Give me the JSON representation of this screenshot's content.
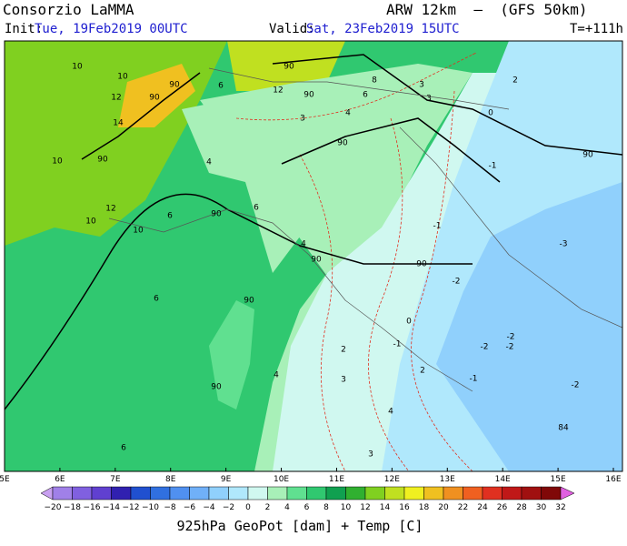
{
  "header": {
    "title": "Consorzio LaMMA",
    "init_label": "Init:",
    "init_time": "Tue, 19Feb2019 00UTC",
    "valid_label": "Valid:",
    "valid_time": "Sat, 23Feb2019 15UTC",
    "model": "ARW 12km  –  (GFS 50km)",
    "lead_time": "T=+111h"
  },
  "map": {
    "longitude_labels": [
      "5E",
      "6E",
      "7E",
      "8E",
      "9E",
      "10E",
      "11E",
      "12E",
      "13E",
      "14E",
      "15E",
      "16E"
    ],
    "contour_labels": [
      "10",
      "10",
      "12",
      "14",
      "90",
      "90",
      "6",
      "90",
      "12",
      "90",
      "8",
      "6",
      "4",
      "3",
      "3",
      "3",
      "2",
      "0",
      "90",
      "90",
      "10",
      "90",
      "4",
      "12",
      "10",
      "10",
      "6",
      "90",
      "6",
      "4",
      "90",
      "90",
      "-1",
      "-1",
      "-3",
      "-2",
      "6",
      "90",
      "0",
      "-1",
      "2",
      "-2",
      "-2",
      "-2",
      "3",
      "4",
      "2",
      "-1",
      "90",
      "-2",
      "84",
      "4",
      "3",
      "6"
    ]
  },
  "colorbar": {
    "labels": [
      "−20",
      "−18",
      "−16",
      "−14",
      "−12",
      "−10",
      "−8",
      "−6",
      "−4",
      "−2",
      "0",
      "2",
      "4",
      "6",
      "8",
      "10",
      "12",
      "14",
      "16",
      "18",
      "20",
      "22",
      "24",
      "26",
      "28",
      "30",
      "32"
    ],
    "colors": [
      "#c8a0f0",
      "#a080e8",
      "#8060e0",
      "#6040d0",
      "#3020b0",
      "#2050d0",
      "#3070e0",
      "#5090f0",
      "#70b0f8",
      "#90d0fc",
      "#b0e8fc",
      "#d0f8f0",
      "#a8f0b8",
      "#60e090",
      "#30c870",
      "#10a050",
      "#30b030",
      "#80d020",
      "#c0e020",
      "#f0f020",
      "#f0c020",
      "#f09020",
      "#f06020",
      "#e03020",
      "#c01818",
      "#a01010",
      "#800808",
      "#e060e0"
    ]
  },
  "footer": {
    "caption": "925hPa GeoPot [dam] + Temp [C]"
  }
}
